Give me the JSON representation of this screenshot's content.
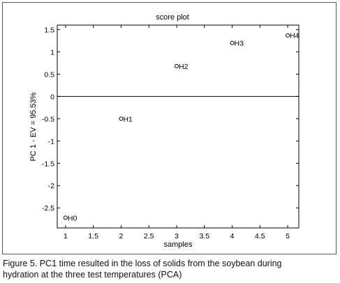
{
  "chart_data": {
    "type": "scatter",
    "title": "score plot",
    "xlabel": "samples",
    "ylabel": "PC 1 - EV = 95.53%",
    "xlim": [
      0.85,
      5.2
    ],
    "ylim": [
      -2.95,
      1.6
    ],
    "xticks": [
      1,
      1.5,
      2,
      2.5,
      3,
      3.5,
      4,
      4.5,
      5
    ],
    "xtick_labels": [
      "1",
      "1.5",
      "2",
      "2.5",
      "3",
      "3.5",
      "4",
      "4.5",
      "5"
    ],
    "yticks": [
      1.5,
      1,
      0.5,
      0,
      -0.5,
      -1,
      -1.5,
      -2,
      -2.5
    ],
    "ytick_labels": [
      "1.5",
      "1",
      "0.5",
      "0",
      "-0.5",
      "-1",
      "-1.5",
      "-2",
      "-2.5"
    ],
    "reference_line_y": 0,
    "grid": false,
    "legend": "none",
    "points": [
      {
        "label": "H0",
        "x": 1,
        "y": -2.72
      },
      {
        "label": "H1",
        "x": 2,
        "y": -0.5
      },
      {
        "label": "H2",
        "x": 3,
        "y": 0.68
      },
      {
        "label": "H3",
        "x": 4,
        "y": 1.2
      },
      {
        "label": "H4",
        "x": 5,
        "y": 1.37
      }
    ],
    "colors": {
      "axis": "#000000",
      "marker": "#000000",
      "background": "#ffffff"
    }
  },
  "caption": {
    "line1": "Figure 5. PC1 time resulted in the loss of solids from the soybean during",
    "line2": "hydration at the three test temperatures (PCA)"
  }
}
